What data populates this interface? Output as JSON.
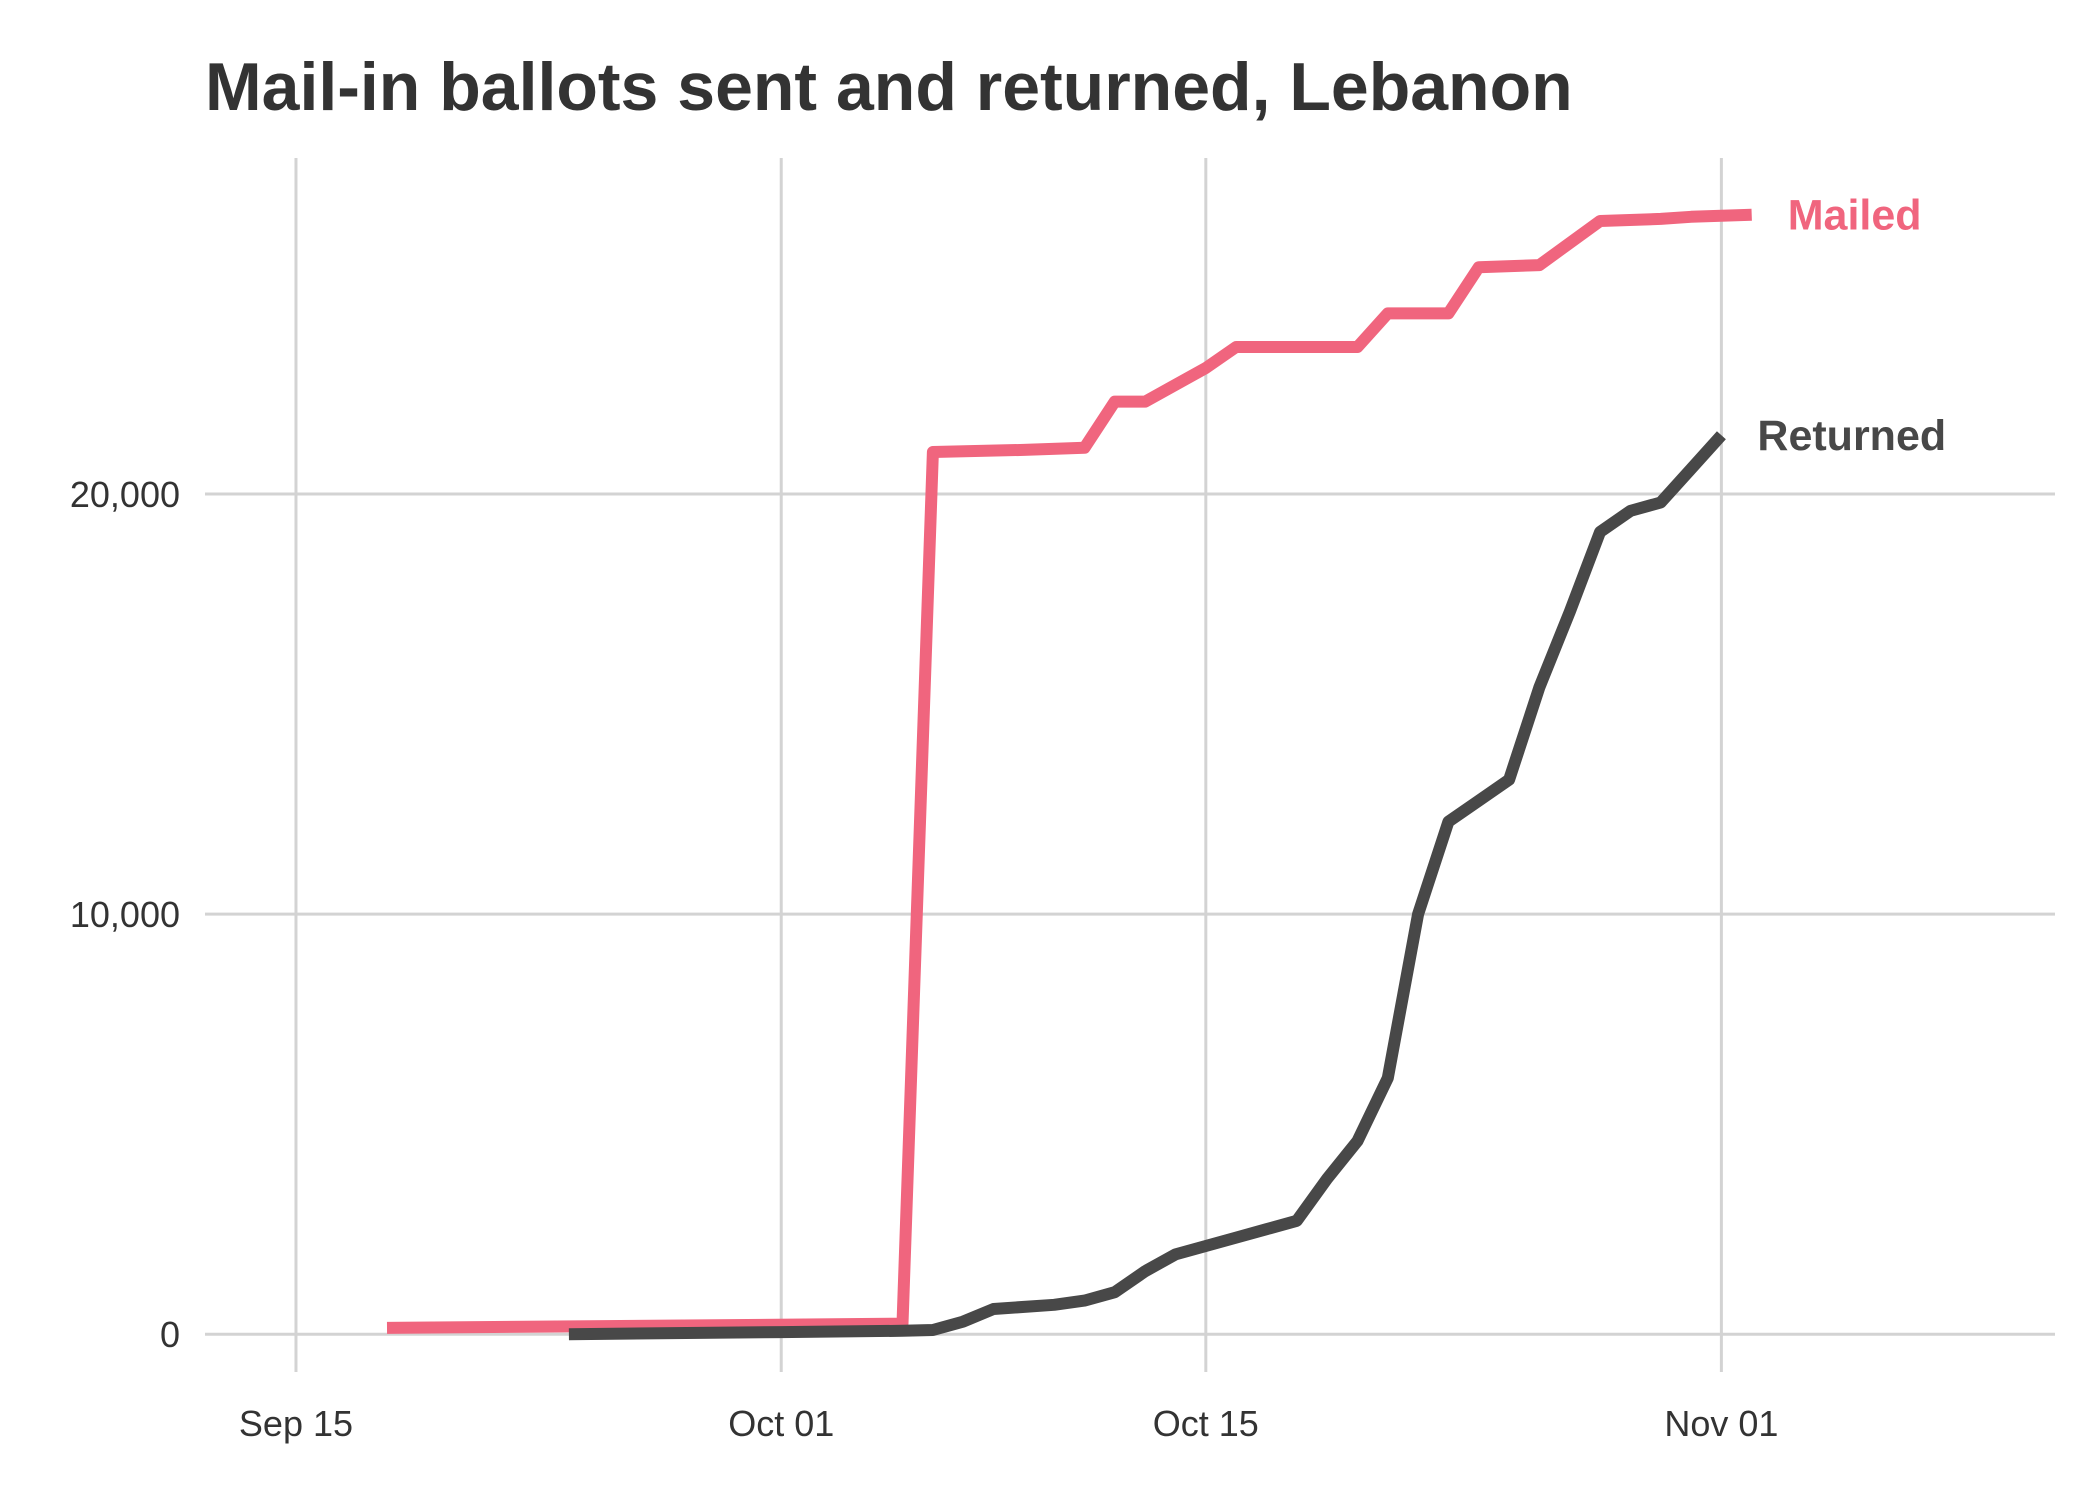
{
  "chart_data": {
    "type": "line",
    "title": "Mail-in ballots sent and returned, Lebanon",
    "xlabel": "",
    "ylabel": "",
    "x_axis": {
      "type": "date",
      "range": [
        "2020-09-12",
        "2020-11-12"
      ],
      "ticks": [
        {
          "date": "2020-09-15",
          "label": "Sep 15"
        },
        {
          "date": "2020-10-01",
          "label": "Oct 01"
        },
        {
          "date": "2020-10-15",
          "label": "Oct 15"
        },
        {
          "date": "2020-11-01",
          "label": "Nov 01"
        }
      ]
    },
    "y_axis": {
      "range": [
        -900,
        28000
      ],
      "ticks": [
        {
          "value": 0,
          "label": "0"
        },
        {
          "value": 10000,
          "label": "10,000"
        },
        {
          "value": 20000,
          "label": "20,000"
        }
      ]
    },
    "grid": true,
    "legend": "direct labels at line ends",
    "series": [
      {
        "name": "Mailed",
        "color": "#F0657E",
        "points": [
          [
            "2020-09-18",
            150
          ],
          [
            "2020-10-05",
            250
          ],
          [
            "2020-10-06",
            21000
          ],
          [
            "2020-10-09",
            21050
          ],
          [
            "2020-10-11",
            21100
          ],
          [
            "2020-10-12",
            22200
          ],
          [
            "2020-10-13",
            22200
          ],
          [
            "2020-10-15",
            23000
          ],
          [
            "2020-10-16",
            23500
          ],
          [
            "2020-10-20",
            23500
          ],
          [
            "2020-10-21",
            24300
          ],
          [
            "2020-10-23",
            24300
          ],
          [
            "2020-10-24",
            25400
          ],
          [
            "2020-10-26",
            25450
          ],
          [
            "2020-10-28",
            26500
          ],
          [
            "2020-10-30",
            26550
          ],
          [
            "2020-10-31",
            26600
          ],
          [
            "2020-11-02",
            26650
          ]
        ]
      },
      {
        "name": "Returned",
        "color": "#484848",
        "points": [
          [
            "2020-09-24",
            0
          ],
          [
            "2020-10-01",
            50
          ],
          [
            "2020-10-05",
            80
          ],
          [
            "2020-10-06",
            100
          ],
          [
            "2020-10-07",
            300
          ],
          [
            "2020-10-08",
            600
          ],
          [
            "2020-10-10",
            700
          ],
          [
            "2020-10-11",
            800
          ],
          [
            "2020-10-12",
            1000
          ],
          [
            "2020-10-13",
            1500
          ],
          [
            "2020-10-14",
            1900
          ],
          [
            "2020-10-15",
            2100
          ],
          [
            "2020-10-16",
            2300
          ],
          [
            "2020-10-17",
            2500
          ],
          [
            "2020-10-18",
            2700
          ],
          [
            "2020-10-19",
            3700
          ],
          [
            "2020-10-20",
            4600
          ],
          [
            "2020-10-21",
            6100
          ],
          [
            "2020-10-22",
            10000
          ],
          [
            "2020-10-23",
            12200
          ],
          [
            "2020-10-24",
            12700
          ],
          [
            "2020-10-25",
            13200
          ],
          [
            "2020-10-26",
            15400
          ],
          [
            "2020-10-27",
            17200
          ],
          [
            "2020-10-28",
            19100
          ],
          [
            "2020-10-29",
            19600
          ],
          [
            "2020-10-30",
            19800
          ],
          [
            "2020-10-31",
            20600
          ],
          [
            "2020-11-01",
            21400
          ]
        ]
      }
    ]
  }
}
